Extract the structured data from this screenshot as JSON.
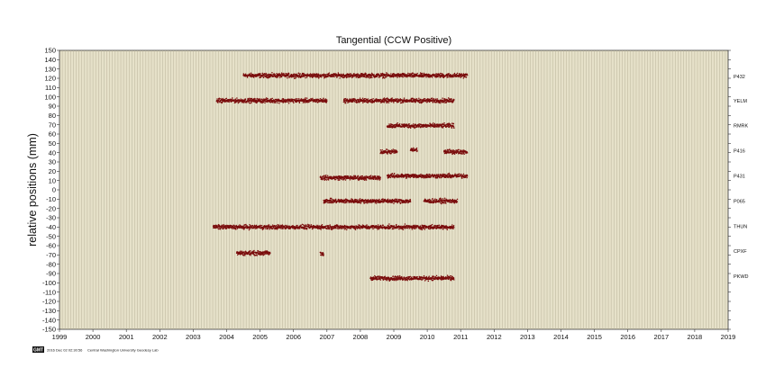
{
  "chart_data": {
    "type": "scatter",
    "title": "Tangential (CCW Positive)",
    "ylabel": "relative positions (mm)",
    "xlabel": "",
    "xlim": [
      1999,
      2019
    ],
    "ylim": [
      -150,
      150
    ],
    "y_ticks": [
      150,
      140,
      130,
      120,
      110,
      100,
      90,
      80,
      70,
      60,
      50,
      40,
      30,
      20,
      10,
      0,
      -10,
      -20,
      -30,
      -40,
      -50,
      -60,
      -70,
      -80,
      -90,
      -100,
      -110,
      -120,
      -130,
      -140,
      -150
    ],
    "x_ticks": [
      1999,
      2000,
      2001,
      2002,
      2003,
      2004,
      2005,
      2006,
      2007,
      2008,
      2009,
      2010,
      2011,
      2012,
      2013,
      2014,
      2015,
      2016,
      2017,
      2018,
      2019
    ],
    "grid": "vertical",
    "background": "#e6e1c9",
    "marker_color": "#7a0c0c",
    "series": [
      {
        "name": "P432",
        "label_y": 122,
        "segments": [
          {
            "x0": 2004.5,
            "x1": 2011.2,
            "y": 123
          }
        ]
      },
      {
        "name": "YELM",
        "label_y": 96,
        "segments": [
          {
            "x0": 2003.7,
            "x1": 2007.0,
            "y": 96
          },
          {
            "x0": 2007.5,
            "x1": 2010.8,
            "y": 96
          }
        ]
      },
      {
        "name": "RMRK",
        "label_y": 69,
        "segments": [
          {
            "x0": 2008.8,
            "x1": 2010.8,
            "y": 69
          }
        ]
      },
      {
        "name": "P416",
        "label_y": 42,
        "segments": [
          {
            "x0": 2008.6,
            "x1": 2009.1,
            "y": 41
          },
          {
            "x0": 2009.5,
            "x1": 2009.7,
            "y": 43
          },
          {
            "x0": 2010.5,
            "x1": 2011.2,
            "y": 41
          }
        ]
      },
      {
        "name": "P431",
        "label_y": 15,
        "segments": [
          {
            "x0": 2006.8,
            "x1": 2008.6,
            "y": 13
          },
          {
            "x0": 2008.8,
            "x1": 2011.2,
            "y": 15
          }
        ]
      },
      {
        "name": "P065",
        "label_y": -12,
        "segments": [
          {
            "x0": 2006.9,
            "x1": 2009.5,
            "y": -12
          },
          {
            "x0": 2009.9,
            "x1": 2010.9,
            "y": -12
          }
        ]
      },
      {
        "name": "THUN",
        "label_y": -39,
        "segments": [
          {
            "x0": 2003.6,
            "x1": 2010.8,
            "y": -40
          }
        ]
      },
      {
        "name": "CPXF",
        "label_y": -66,
        "segments": [
          {
            "x0": 2004.3,
            "x1": 2005.3,
            "y": -68
          },
          {
            "x0": 2006.8,
            "x1": 2006.9,
            "y": -69
          }
        ]
      },
      {
        "name": "PKWD",
        "label_y": -93,
        "segments": [
          {
            "x0": 2008.3,
            "x1": 2010.8,
            "y": -95
          }
        ]
      }
    ]
  },
  "footer": {
    "logo": "GMT",
    "timestamp": "2016 Dec 02 02:30:56",
    "credit": "Central Washington University Geodesy Lab"
  }
}
